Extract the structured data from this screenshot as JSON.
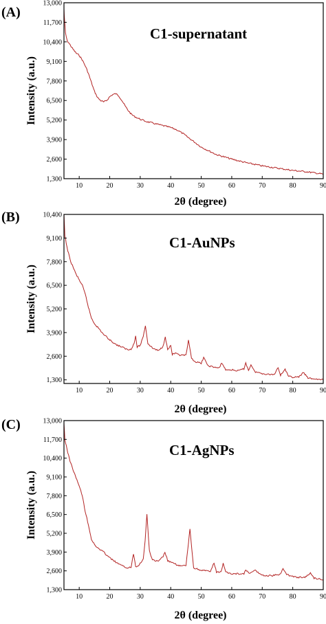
{
  "chart_data": [
    {
      "type": "line",
      "panel_label": "(A)",
      "title": "C1-supernatant",
      "xlabel": "2θ (degree)",
      "ylabel": "Intensity (a.u.)",
      "xlim": [
        5,
        90
      ],
      "ylim": [
        1300,
        13000
      ],
      "xticks": [
        10,
        20,
        30,
        40,
        50,
        60,
        70,
        80,
        90
      ],
      "yticks": [
        1300,
        2600,
        3900,
        5200,
        6500,
        7800,
        9100,
        10400,
        11700,
        13000
      ],
      "ytick_labels": [
        "1,300",
        "2,600",
        "3,900",
        "5,200",
        "6,500",
        "7,800",
        "9,100",
        "10,400",
        "11,700",
        "13,000"
      ],
      "grid": false,
      "line_color": "#b22222",
      "series": [
        {
          "x": [
            5.0,
            5.2,
            5.5,
            6,
            7,
            8,
            9,
            10,
            11,
            12,
            13,
            14,
            15,
            16,
            17,
            18,
            19,
            20,
            21,
            22,
            23,
            24,
            25,
            26,
            27,
            28,
            30,
            32,
            34,
            36,
            38,
            40,
            42,
            44,
            46,
            48,
            50,
            55,
            60,
            65,
            70,
            75,
            80,
            85,
            90
          ],
          "y": [
            12600,
            11800,
            11000,
            10500,
            10200,
            9900,
            9650,
            9500,
            9200,
            8800,
            8300,
            7700,
            7100,
            6700,
            6500,
            6400,
            6500,
            6750,
            6900,
            6950,
            6800,
            6500,
            6150,
            5850,
            5600,
            5450,
            5250,
            5100,
            5000,
            4900,
            4800,
            4700,
            4550,
            4300,
            4000,
            3700,
            3400,
            2900,
            2600,
            2350,
            2150,
            2000,
            1850,
            1750,
            1600
          ]
        }
      ]
    },
    {
      "type": "line",
      "panel_label": "(B)",
      "title": "C1-AuNPs",
      "xlabel": "2θ (degree)",
      "ylabel": "Intensity (a.u.)",
      "xlim": [
        5,
        90
      ],
      "ylim": [
        1100,
        10400
      ],
      "xticks": [
        10,
        20,
        30,
        40,
        50,
        60,
        70,
        80,
        90
      ],
      "yticks": [
        1300,
        2600,
        3900,
        5200,
        6500,
        7800,
        9100,
        10400
      ],
      "ytick_labels": [
        "1,300",
        "2,600",
        "3,900",
        "5,200",
        "6,500",
        "7,800",
        "9,100",
        "10,400"
      ],
      "grid": false,
      "line_color": "#b22222",
      "series": [
        {
          "x": [
            5.0,
            5.3,
            6,
            7,
            8,
            9,
            10,
            11,
            12,
            13,
            14,
            15,
            16,
            18,
            20,
            22,
            24,
            26,
            27,
            28,
            28.5,
            29,
            30,
            31,
            31.7,
            32.5,
            34,
            36,
            37.5,
            38.2,
            39,
            40,
            40.5,
            41.5,
            43,
            45,
            45.8,
            46.8,
            48,
            50,
            50.8,
            52,
            54,
            56,
            56.7,
            58,
            60,
            62,
            64,
            64.6,
            65.5,
            66.3,
            67.5,
            70,
            72,
            74,
            75.2,
            76,
            77.5,
            78.5,
            80,
            82,
            83.5,
            85,
            87,
            90
          ],
          "y": [
            10400,
            9200,
            8600,
            7900,
            7500,
            7100,
            6800,
            6500,
            6000,
            5300,
            4700,
            4400,
            4200,
            3800,
            3500,
            3250,
            3100,
            2950,
            3000,
            3300,
            3700,
            3100,
            3200,
            3700,
            4300,
            3300,
            3050,
            2900,
            3150,
            3700,
            2950,
            3200,
            2700,
            2750,
            2650,
            2650,
            3450,
            2500,
            2300,
            2200,
            2550,
            2100,
            2000,
            1950,
            2250,
            1850,
            1850,
            1800,
            1900,
            2250,
            1800,
            2150,
            1750,
            1650,
            1600,
            1600,
            2000,
            1550,
            1900,
            1500,
            1450,
            1450,
            1700,
            1400,
            1350,
            1300
          ]
        }
      ]
    },
    {
      "type": "line",
      "panel_label": "(C)",
      "title": "C1-AgNPs",
      "xlabel": "2θ (degree)",
      "ylabel": "Intensity (a.u.)",
      "xlim": [
        5,
        90
      ],
      "ylim": [
        1300,
        13000
      ],
      "xticks": [
        10,
        20,
        30,
        40,
        50,
        60,
        70,
        80,
        90
      ],
      "yticks": [
        1300,
        2600,
        3900,
        5200,
        6500,
        7800,
        9100,
        10400,
        11700,
        13000
      ],
      "ytick_labels": [
        "1,300",
        "2,600",
        "3,900",
        "5,200",
        "6,500",
        "7,800",
        "9,100",
        "10,400",
        "11,700",
        "13,000"
      ],
      "grid": false,
      "line_color": "#b22222",
      "series": [
        {
          "x": [
            5.0,
            5.3,
            6,
            7,
            8,
            9,
            10,
            11,
            12,
            13,
            14,
            15,
            16,
            18,
            20,
            22,
            24,
            26,
            27,
            27.8,
            28.5,
            29.5,
            31,
            31.6,
            32.2,
            33,
            34,
            36,
            37.5,
            38.1,
            39,
            41,
            43,
            45,
            45.6,
            46.3,
            47.5,
            50,
            53,
            54.2,
            55,
            56.5,
            57.2,
            58,
            60,
            62,
            64,
            64.6,
            66,
            67.5,
            70,
            72,
            74,
            76,
            76.8,
            78,
            80,
            82,
            84,
            85.8,
            87,
            90
          ],
          "y": [
            12800,
            11700,
            11000,
            10200,
            9600,
            9000,
            8500,
            7800,
            6700,
            5800,
            4800,
            4400,
            4200,
            3900,
            3500,
            3200,
            2950,
            2800,
            2850,
            3800,
            2900,
            3000,
            3400,
            4700,
            6500,
            4000,
            3350,
            3250,
            3600,
            3900,
            3300,
            3100,
            2950,
            2950,
            4100,
            5500,
            2800,
            2650,
            2550,
            3150,
            2500,
            2550,
            3100,
            2500,
            2400,
            2400,
            2400,
            2650,
            2400,
            2650,
            2300,
            2250,
            2300,
            2350,
            2800,
            2350,
            2200,
            2150,
            2150,
            2450,
            2100,
            2000
          ]
        }
      ]
    }
  ]
}
